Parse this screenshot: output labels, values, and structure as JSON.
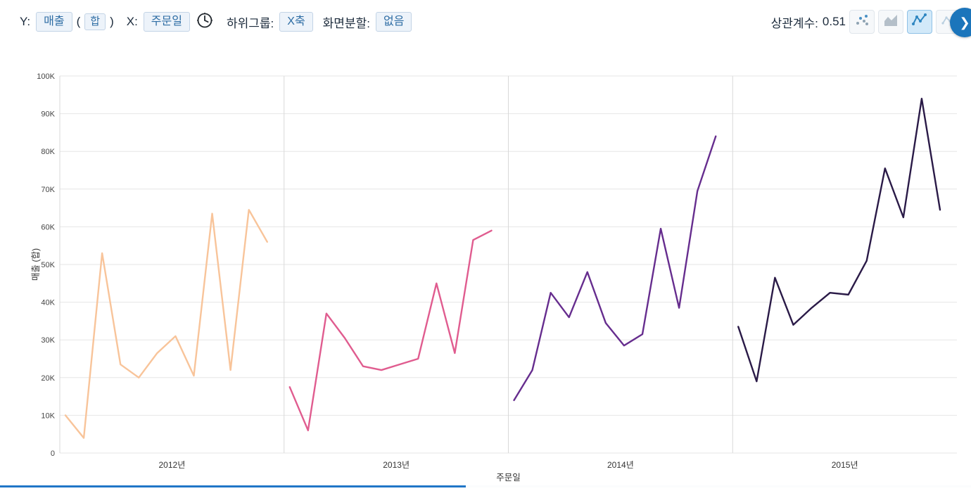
{
  "toolbar": {
    "y_label": "Y:",
    "y_field": "매출",
    "paren_open": "(",
    "y_agg": "합",
    "paren_close": ")",
    "x_label": "X:",
    "x_field": "주문일",
    "subgroup_label": "하위그룹:",
    "subgroup_value": "X축",
    "split_label": "화면분할:",
    "split_value": "없음",
    "correlation_label": "상관계수:",
    "correlation_value": "0.51",
    "chevron_glyph": "❯",
    "accent_color": "#2e6da4",
    "selected_icon_bg": "#d2e9f9"
  },
  "chart_data": {
    "type": "line",
    "title": "",
    "xlabel": "주문일",
    "ylabel": "매출 (합)",
    "ylim": [
      0,
      100000
    ],
    "ytick_step": 10000,
    "ytick_labels": [
      "0",
      "10K",
      "20K",
      "30K",
      "40K",
      "50K",
      "60K",
      "70K",
      "80K",
      "90K",
      "100K"
    ],
    "grid": true,
    "legend": "none",
    "groups": [
      "2012년",
      "2013년",
      "2014년",
      "2015년"
    ],
    "x_unit": "month (12 points per year panel)",
    "series": [
      {
        "name": "2012년",
        "color": "#f8c49a",
        "values": [
          10000,
          4000,
          53000,
          23500,
          20000,
          26500,
          31000,
          20500,
          63500,
          22000,
          64500,
          56000
        ]
      },
      {
        "name": "2013년",
        "color": "#e05c8f",
        "values": [
          17500,
          6000,
          37000,
          30500,
          23000,
          22000,
          23500,
          25000,
          45000,
          26500,
          56500,
          59000
        ]
      },
      {
        "name": "2014년",
        "color": "#662d8e",
        "values": [
          14000,
          22000,
          42500,
          36000,
          48000,
          34500,
          28500,
          31500,
          59500,
          38500,
          69500,
          84000
        ]
      },
      {
        "name": "2015년",
        "color": "#2a1a47",
        "values": [
          33500,
          19000,
          46500,
          34000,
          38500,
          42500,
          42000,
          51000,
          75500,
          62500,
          94000,
          64500
        ]
      }
    ]
  }
}
